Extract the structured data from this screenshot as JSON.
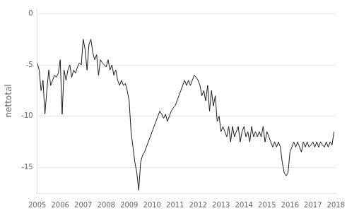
{
  "chart_data": {
    "type": "line",
    "ylabel": "nettotal",
    "xlim": [
      2005,
      2018
    ],
    "ylim": [
      -17.5,
      0.5
    ],
    "xticks": [
      2005,
      2006,
      2007,
      2008,
      2009,
      2010,
      2011,
      2012,
      2013,
      2014,
      2015,
      2016,
      2017,
      2018
    ],
    "yticks": [
      0,
      -5,
      -10,
      -15
    ],
    "grid": "y",
    "color": "#1a1a1a",
    "x": [
      2005.0,
      2005.0833333333333,
      2005.1666666666667,
      2005.25,
      2005.3333333333333,
      2005.4166666666667,
      2005.5,
      2005.5833333333333,
      2005.6666666666667,
      2005.75,
      2005.8333333333333,
      2005.9166666666667,
      2006.0,
      2006.0833333333333,
      2006.1666666666667,
      2006.25,
      2006.3333333333333,
      2006.4166666666667,
      2006.5,
      2006.5833333333333,
      2006.6666666666667,
      2006.75,
      2006.8333333333333,
      2006.9166666666667,
      2007.0,
      2007.0833333333333,
      2007.1666666666667,
      2007.25,
      2007.3333333333333,
      2007.4166666666667,
      2007.5,
      2007.5833333333333,
      2007.6666666666667,
      2007.75,
      2007.8333333333333,
      2007.9166666666667,
      2008.0,
      2008.0833333333333,
      2008.1666666666667,
      2008.25,
      2008.3333333333333,
      2008.4166666666667,
      2008.5,
      2008.5833333333333,
      2008.6666666666667,
      2008.75,
      2008.8333333333333,
      2008.9166666666667,
      2009.0,
      2009.0833333333333,
      2009.1666666666667,
      2009.25,
      2009.3333333333333,
      2009.4166666666667,
      2009.5,
      2009.5833333333333,
      2009.6666666666667,
      2009.75,
      2009.8333333333333,
      2009.9166666666667,
      2010.0,
      2010.0833333333333,
      2010.1666666666667,
      2010.25,
      2010.3333333333333,
      2010.4166666666667,
      2010.5,
      2010.5833333333333,
      2010.6666666666667,
      2010.75,
      2010.8333333333333,
      2010.9166666666667,
      2011.0,
      2011.0833333333333,
      2011.1666666666667,
      2011.25,
      2011.3333333333333,
      2011.4166666666667,
      2011.5,
      2011.5833333333333,
      2011.6666666666667,
      2011.75,
      2011.8333333333333,
      2011.9166666666667,
      2012.0,
      2012.0833333333333,
      2012.1666666666667,
      2012.25,
      2012.3333333333333,
      2012.4166666666667,
      2012.5,
      2012.5833333333333,
      2012.6666666666667,
      2012.75,
      2012.8333333333333,
      2012.9166666666667,
      2013.0,
      2013.0833333333333,
      2013.1666666666667,
      2013.25,
      2013.3333333333333,
      2013.4166666666667,
      2013.5,
      2013.5833333333333,
      2013.6666666666667,
      2013.75,
      2013.8333333333333,
      2013.9166666666667,
      2014.0,
      2014.0833333333333,
      2014.1666666666667,
      2014.25,
      2014.3333333333333,
      2014.4166666666667,
      2014.5,
      2014.5833333333333,
      2014.6666666666667,
      2014.75,
      2014.8333333333333,
      2014.9166666666667,
      2015.0,
      2015.0833333333333,
      2015.1666666666667,
      2015.25,
      2015.3333333333333,
      2015.4166666666667,
      2015.5,
      2015.5833333333333,
      2015.6666666666667,
      2015.75,
      2015.8333333333333,
      2015.9166666666667,
      2016.0,
      2016.0833333333333,
      2016.1666666666667,
      2016.25,
      2016.3333333333333,
      2016.4166666666667,
      2016.5,
      2016.5833333333333,
      2016.6666666666667,
      2016.75,
      2016.8333333333333,
      2016.9166666666667,
      2017.0,
      2017.0833333333333,
      2017.1666666666667,
      2017.25,
      2017.3333333333333,
      2017.4166666666667,
      2017.5,
      2017.5833333333333,
      2017.6666666666667,
      2017.75,
      2017.8333333333333,
      2017.9166666666667
    ],
    "values": [
      -4.8,
      -5.5,
      -7.5,
      -6.5,
      -9.8,
      -7.5,
      -5.5,
      -7.0,
      -6.5,
      -6.0,
      -6.2,
      -5.8,
      -4.5,
      -9.8,
      -5.5,
      -6.5,
      -5.5,
      -5.0,
      -6.2,
      -5.5,
      -5.8,
      -5.2,
      -4.8,
      -5.0,
      -2.5,
      -3.5,
      -5.5,
      -3.0,
      -2.5,
      -3.8,
      -4.5,
      -4.0,
      -6.0,
      -4.5,
      -4.8,
      -5.0,
      -5.2,
      -4.5,
      -5.5,
      -5.0,
      -6.0,
      -5.5,
      -6.5,
      -7.0,
      -6.5,
      -7.0,
      -6.8,
      -7.5,
      -8.5,
      -11.5,
      -13.0,
      -14.5,
      -15.5,
      -17.2,
      -14.5,
      -13.8,
      -13.5,
      -13.0,
      -12.5,
      -12.0,
      -11.5,
      -11.0,
      -10.5,
      -10.0,
      -9.5,
      -9.8,
      -10.2,
      -9.8,
      -10.5,
      -10.0,
      -9.5,
      -9.2,
      -9.0,
      -8.5,
      -8.0,
      -7.5,
      -7.0,
      -6.5,
      -7.0,
      -6.5,
      -7.0,
      -6.5,
      -6.0,
      -6.2,
      -6.5,
      -7.0,
      -8.0,
      -7.5,
      -8.5,
      -7.0,
      -9.5,
      -7.5,
      -9.0,
      -8.0,
      -10.5,
      -10.0,
      -11.5,
      -11.0,
      -11.5,
      -12.0,
      -11.0,
      -12.5,
      -11.0,
      -12.0,
      -11.5,
      -11.0,
      -12.5,
      -11.5,
      -11.0,
      -12.0,
      -11.5,
      -12.5,
      -11.0,
      -12.0,
      -11.5,
      -12.0,
      -11.5,
      -12.0,
      -11.0,
      -12.5,
      -11.5,
      -12.0,
      -12.5,
      -13.0,
      -12.5,
      -13.0,
      -12.5,
      -13.0,
      -14.5,
      -15.5,
      -15.8,
      -15.5,
      -13.5,
      -13.0,
      -12.5,
      -13.0,
      -12.5,
      -13.0,
      -13.5,
      -12.5,
      -13.0,
      -12.5,
      -13.0,
      -12.8,
      -12.5,
      -13.0,
      -12.5,
      -13.0,
      -12.5,
      -12.8,
      -13.0,
      -12.5,
      -13.0,
      -12.5,
      -12.8,
      -11.5
    ]
  }
}
